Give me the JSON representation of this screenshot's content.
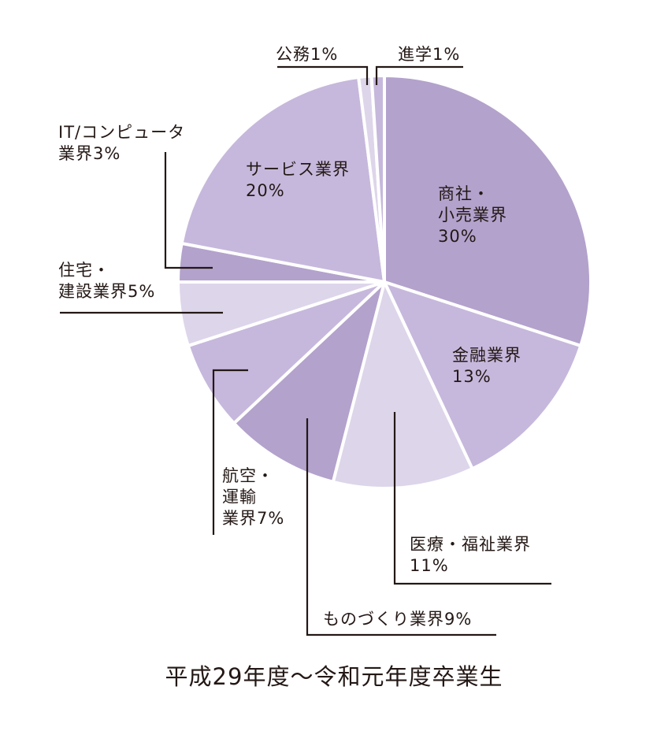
{
  "chart_data": {
    "type": "pie",
    "caption": "平成29年度～令和元年度卒業生",
    "slices": [
      {
        "name": "商社・小売業界",
        "value": 30,
        "label_lines": [
          "商社・",
          "小売業界",
          "30%"
        ],
        "color": "#b3a2cc"
      },
      {
        "name": "金融業界",
        "value": 13,
        "label_lines": [
          "金融業界",
          "13%"
        ],
        "color": "#c6b8dc"
      },
      {
        "name": "医療・福祉業界",
        "value": 11,
        "label_lines": [
          "医療・福祉業界",
          "11%"
        ],
        "color": "#ddd5ea"
      },
      {
        "name": "ものづくり業界",
        "value": 9,
        "label_lines": [
          "ものづくり業界9%"
        ],
        "color": "#b3a2cc"
      },
      {
        "name": "航空・運輸業界",
        "value": 7,
        "label_lines": [
          "航空・",
          "運輸",
          "業界7%"
        ],
        "color": "#c6b8dc"
      },
      {
        "name": "住宅・建設業界",
        "value": 5,
        "label_lines": [
          "住宅・",
          "建設業界5%"
        ],
        "color": "#ddd5ea"
      },
      {
        "name": "IT/コンピュータ業界",
        "value": 3,
        "label_lines": [
          "IT/コンピュータ",
          "業界3%"
        ],
        "color": "#b3a2cc"
      },
      {
        "name": "サービス業界",
        "value": 20,
        "label_lines": [
          "サービス業界",
          "20%"
        ],
        "color": "#c6b8dc"
      },
      {
        "name": "公務",
        "value": 1,
        "label_lines": [
          "公務1%"
        ],
        "color": "#ddd5ea"
      },
      {
        "name": "進学",
        "value": 1,
        "label_lines": [
          "進学1%"
        ],
        "color": "#c6b8dc"
      }
    ]
  }
}
